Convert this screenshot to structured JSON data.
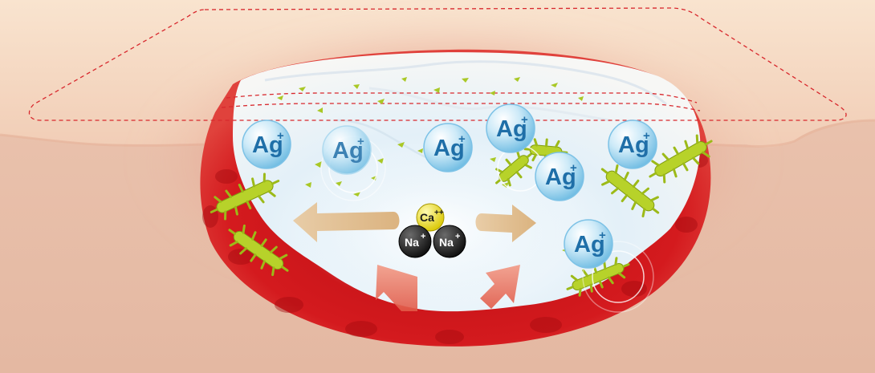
{
  "ions": {
    "silver_label": "Ag",
    "silver_charge": "+",
    "calcium_label": "Ca",
    "calcium_charge": "++",
    "sodium_label": "Na",
    "sodium_charge": "+"
  },
  "colors": {
    "skin_surface": "#f6dcc6",
    "tissue": "#e9c2ad",
    "wound_red": "#d4161c",
    "dressing_white": "#f4f8fb",
    "silver_ion_blue": "#8fd0ee",
    "bacteria_green": "#b7d22a",
    "calcium_yellow": "#f1e01d",
    "sodium_black": "#1c1c1c",
    "arrow_tan": "#e4c59a",
    "arrow_pink": "#ec7d6a",
    "outline_dashed": "#d8282d"
  },
  "icons": [
    "silver-ion-icon",
    "calcium-ion-icon",
    "sodium-ion-icon",
    "bacteria-icon",
    "spread-arrow-icon",
    "absorption-arrow-icon"
  ]
}
